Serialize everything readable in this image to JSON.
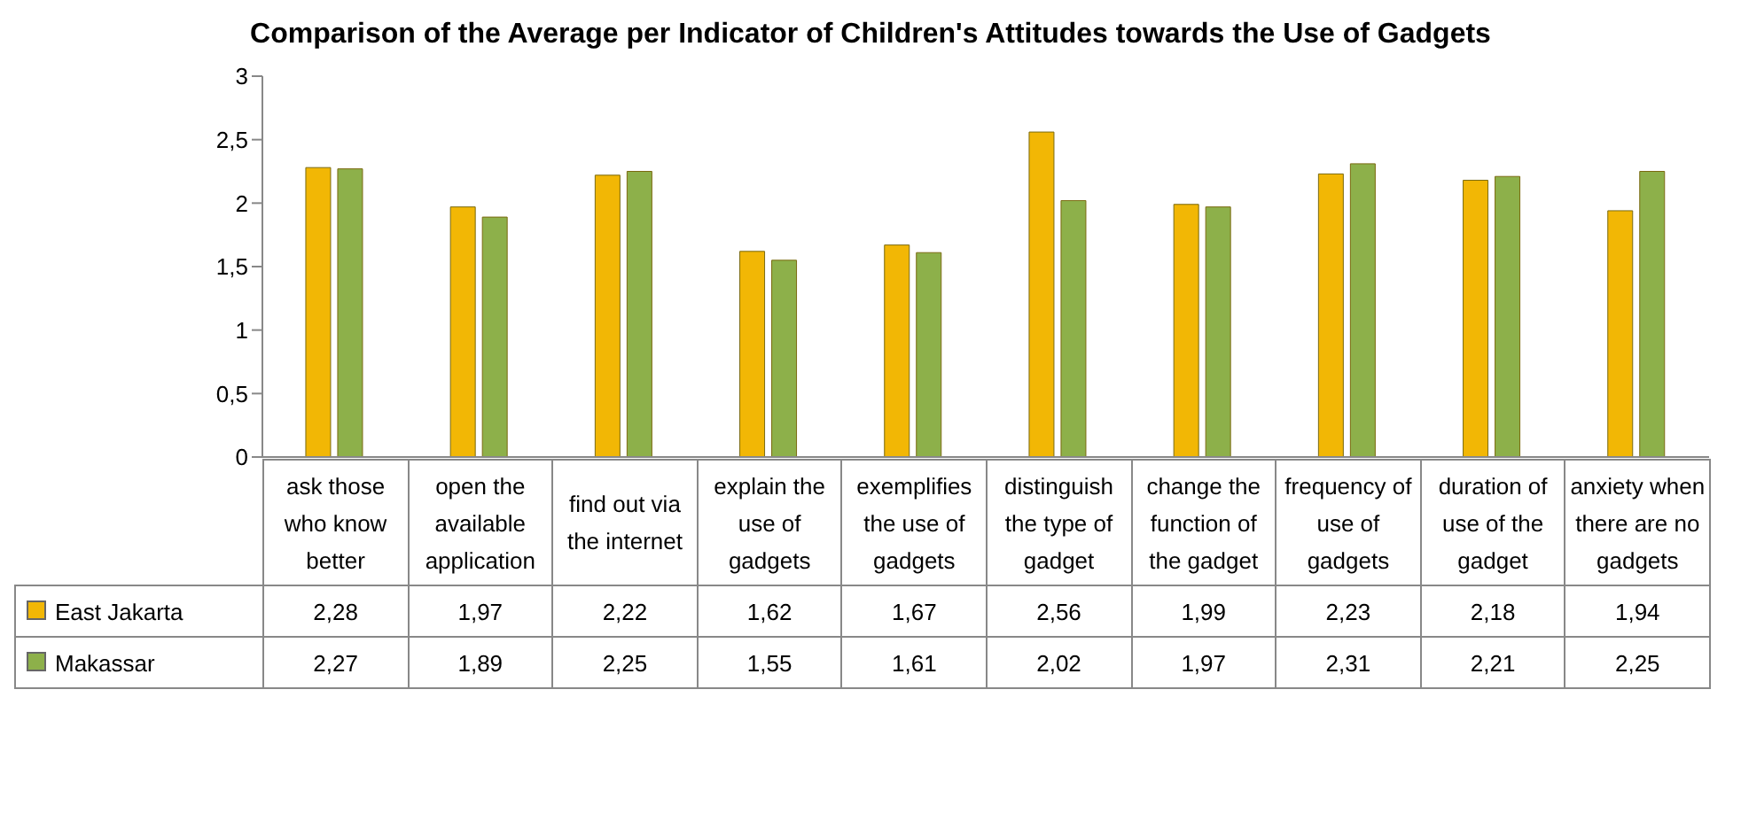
{
  "chart_data": {
    "type": "bar",
    "title": "Comparison of the Average per Indicator of Children's Attitudes towards the Use of Gadgets",
    "categories": [
      "ask those who know better",
      "open the available application",
      "find out via the internet",
      "explain the use of gadgets",
      "exemplifies the use of gadgets",
      "distinguish the type of gadget",
      "change the function of the gadget",
      "frequency of use of gadgets",
      "duration of use of the gadget",
      "anxiety when there are no gadgets"
    ],
    "series": [
      {
        "name": "East Jakarta",
        "color": "#f2b705",
        "values": [
          2.28,
          1.97,
          2.22,
          1.62,
          1.67,
          2.56,
          1.99,
          2.23,
          2.18,
          1.94
        ],
        "value_labels": [
          "2,28",
          "1,97",
          "2,22",
          "1,62",
          "1,67",
          "2,56",
          "1,99",
          "2,23",
          "2,18",
          "1,94"
        ]
      },
      {
        "name": "Makassar",
        "color": "#8db04a",
        "values": [
          2.27,
          1.89,
          2.25,
          1.55,
          1.61,
          2.02,
          1.97,
          2.31,
          2.21,
          2.25
        ],
        "value_labels": [
          "2,27",
          "1,89",
          "2,25",
          "1,55",
          "1,61",
          "2,02",
          "1,97",
          "2,31",
          "2,21",
          "2,25"
        ]
      }
    ],
    "ylim": [
      0,
      3
    ],
    "yticks": [
      {
        "value": 0,
        "label": "0"
      },
      {
        "value": 0.5,
        "label": "0,5"
      },
      {
        "value": 1,
        "label": "1"
      },
      {
        "value": 1.5,
        "label": "1,5"
      },
      {
        "value": 2,
        "label": "2"
      },
      {
        "value": 2.5,
        "label": "2,5"
      },
      {
        "value": 3,
        "label": "3"
      }
    ],
    "grid": false,
    "legend": "bottom"
  }
}
